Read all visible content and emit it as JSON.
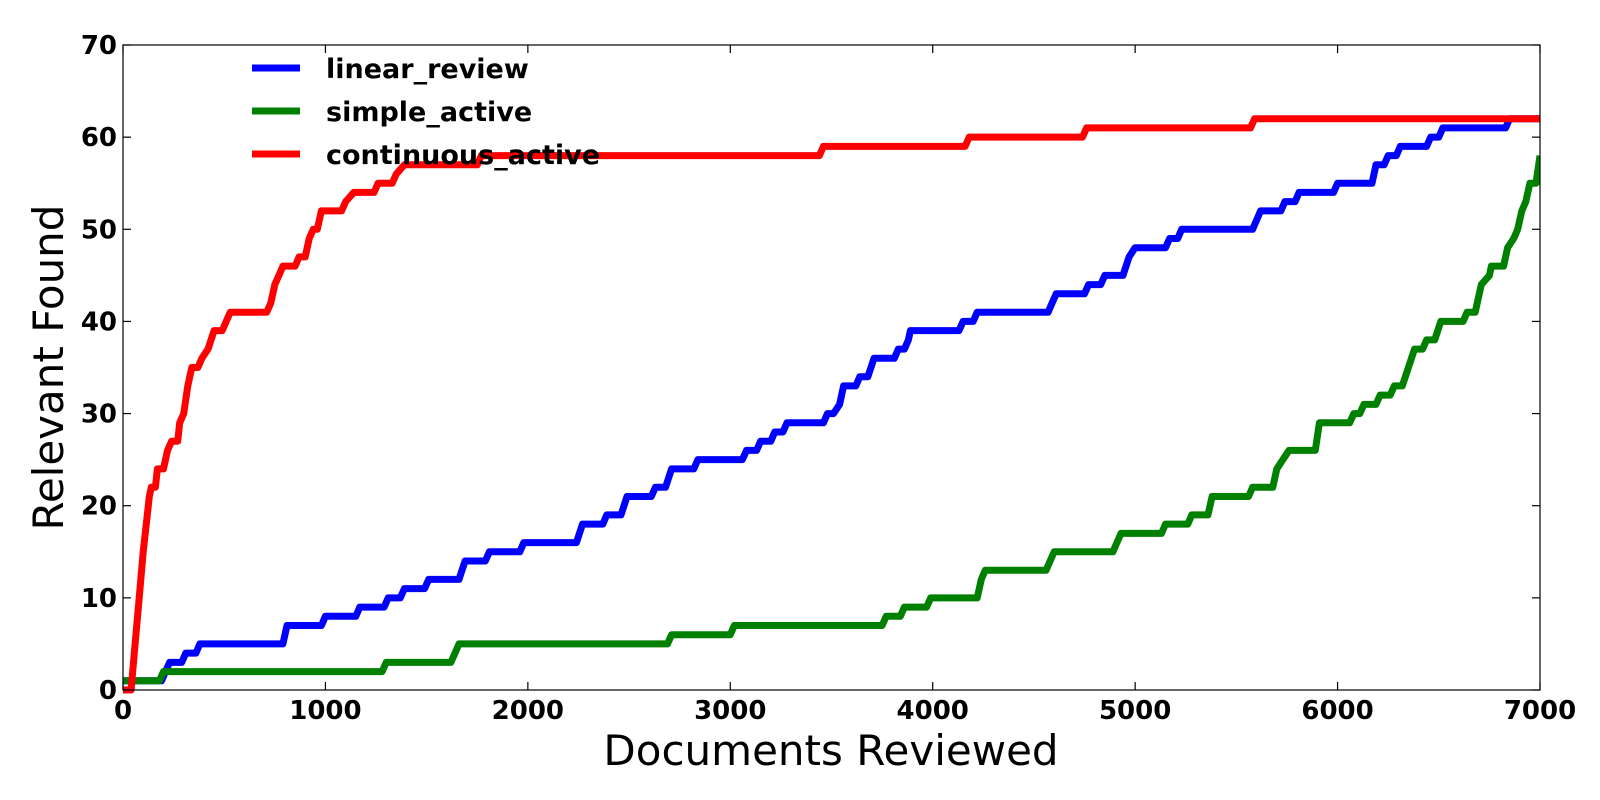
{
  "chart_data": {
    "type": "line",
    "xlabel": "Documents Reviewed",
    "ylabel": "Relevant Found",
    "xlim": [
      0,
      7000
    ],
    "ylim": [
      0,
      70
    ],
    "x_ticks": [
      0,
      1000,
      2000,
      3000,
      4000,
      5000,
      6000,
      7000
    ],
    "y_ticks": [
      0,
      10,
      20,
      30,
      40,
      50,
      60,
      70
    ],
    "grid": false,
    "legend_position": "top-left",
    "series": [
      {
        "name": "linear_review",
        "color": "#0000ff",
        "points": [
          [
            0,
            1
          ],
          [
            190,
            1
          ],
          [
            210,
            2
          ],
          [
            230,
            3
          ],
          [
            290,
            3
          ],
          [
            310,
            4
          ],
          [
            360,
            4
          ],
          [
            380,
            5
          ],
          [
            790,
            5
          ],
          [
            810,
            7
          ],
          [
            980,
            7
          ],
          [
            1000,
            8
          ],
          [
            1150,
            8
          ],
          [
            1170,
            9
          ],
          [
            1290,
            9
          ],
          [
            1310,
            10
          ],
          [
            1370,
            10
          ],
          [
            1390,
            11
          ],
          [
            1490,
            11
          ],
          [
            1510,
            12
          ],
          [
            1660,
            12
          ],
          [
            1690,
            14
          ],
          [
            1790,
            14
          ],
          [
            1810,
            15
          ],
          [
            1960,
            15
          ],
          [
            1980,
            16
          ],
          [
            2240,
            16
          ],
          [
            2270,
            18
          ],
          [
            2370,
            18
          ],
          [
            2390,
            19
          ],
          [
            2460,
            19
          ],
          [
            2490,
            21
          ],
          [
            2610,
            21
          ],
          [
            2630,
            22
          ],
          [
            2680,
            22
          ],
          [
            2710,
            24
          ],
          [
            2820,
            24
          ],
          [
            2840,
            25
          ],
          [
            3060,
            25
          ],
          [
            3080,
            26
          ],
          [
            3130,
            26
          ],
          [
            3150,
            27
          ],
          [
            3200,
            27
          ],
          [
            3220,
            28
          ],
          [
            3260,
            28
          ],
          [
            3280,
            29
          ],
          [
            3460,
            29
          ],
          [
            3480,
            30
          ],
          [
            3510,
            30
          ],
          [
            3540,
            31
          ],
          [
            3560,
            33
          ],
          [
            3620,
            33
          ],
          [
            3640,
            34
          ],
          [
            3680,
            34
          ],
          [
            3710,
            36
          ],
          [
            3810,
            36
          ],
          [
            3830,
            37
          ],
          [
            3860,
            37
          ],
          [
            3880,
            38
          ],
          [
            3890,
            39
          ],
          [
            4130,
            39
          ],
          [
            4150,
            40
          ],
          [
            4200,
            40
          ],
          [
            4220,
            41
          ],
          [
            4570,
            41
          ],
          [
            4590,
            42
          ],
          [
            4610,
            43
          ],
          [
            4750,
            43
          ],
          [
            4770,
            44
          ],
          [
            4830,
            44
          ],
          [
            4850,
            45
          ],
          [
            4940,
            45
          ],
          [
            4970,
            47
          ],
          [
            5000,
            48
          ],
          [
            5150,
            48
          ],
          [
            5170,
            49
          ],
          [
            5210,
            49
          ],
          [
            5230,
            50
          ],
          [
            5580,
            50
          ],
          [
            5600,
            51
          ],
          [
            5620,
            52
          ],
          [
            5720,
            52
          ],
          [
            5740,
            53
          ],
          [
            5790,
            53
          ],
          [
            5810,
            54
          ],
          [
            5980,
            54
          ],
          [
            6000,
            55
          ],
          [
            6170,
            55
          ],
          [
            6190,
            57
          ],
          [
            6230,
            57
          ],
          [
            6250,
            58
          ],
          [
            6290,
            58
          ],
          [
            6310,
            59
          ],
          [
            6440,
            59
          ],
          [
            6460,
            60
          ],
          [
            6500,
            60
          ],
          [
            6520,
            61
          ],
          [
            6830,
            61
          ],
          [
            6850,
            62
          ],
          [
            7000,
            62
          ]
        ]
      },
      {
        "name": "simple_active",
        "color": "#008000",
        "points": [
          [
            0,
            1
          ],
          [
            180,
            1
          ],
          [
            200,
            2
          ],
          [
            1280,
            2
          ],
          [
            1300,
            3
          ],
          [
            1620,
            3
          ],
          [
            1640,
            4
          ],
          [
            1660,
            5
          ],
          [
            2690,
            5
          ],
          [
            2710,
            6
          ],
          [
            3000,
            6
          ],
          [
            3020,
            7
          ],
          [
            3750,
            7
          ],
          [
            3770,
            8
          ],
          [
            3840,
            8
          ],
          [
            3860,
            9
          ],
          [
            3970,
            9
          ],
          [
            3990,
            10
          ],
          [
            4220,
            10
          ],
          [
            4240,
            12
          ],
          [
            4260,
            13
          ],
          [
            4560,
            13
          ],
          [
            4580,
            14
          ],
          [
            4600,
            15
          ],
          [
            4890,
            15
          ],
          [
            4910,
            16
          ],
          [
            4930,
            17
          ],
          [
            5130,
            17
          ],
          [
            5150,
            18
          ],
          [
            5260,
            18
          ],
          [
            5280,
            19
          ],
          [
            5360,
            19
          ],
          [
            5380,
            21
          ],
          [
            5560,
            21
          ],
          [
            5580,
            22
          ],
          [
            5680,
            22
          ],
          [
            5700,
            24
          ],
          [
            5730,
            25
          ],
          [
            5760,
            26
          ],
          [
            5890,
            26
          ],
          [
            5910,
            29
          ],
          [
            6060,
            29
          ],
          [
            6080,
            30
          ],
          [
            6110,
            30
          ],
          [
            6130,
            31
          ],
          [
            6190,
            31
          ],
          [
            6210,
            32
          ],
          [
            6260,
            32
          ],
          [
            6280,
            33
          ],
          [
            6320,
            33
          ],
          [
            6350,
            35
          ],
          [
            6380,
            37
          ],
          [
            6420,
            37
          ],
          [
            6440,
            38
          ],
          [
            6480,
            38
          ],
          [
            6510,
            40
          ],
          [
            6620,
            40
          ],
          [
            6640,
            41
          ],
          [
            6680,
            41
          ],
          [
            6710,
            44
          ],
          [
            6750,
            45
          ],
          [
            6760,
            46
          ],
          [
            6820,
            46
          ],
          [
            6840,
            48
          ],
          [
            6870,
            49
          ],
          [
            6890,
            50
          ],
          [
            6910,
            52
          ],
          [
            6930,
            53
          ],
          [
            6950,
            55
          ],
          [
            6980,
            55
          ],
          [
            7000,
            58
          ]
        ]
      },
      {
        "name": "continuous_active",
        "color": "#ff0000",
        "points": [
          [
            0,
            0
          ],
          [
            40,
            0
          ],
          [
            60,
            5
          ],
          [
            80,
            10
          ],
          [
            100,
            15
          ],
          [
            120,
            19
          ],
          [
            130,
            21
          ],
          [
            140,
            22
          ],
          [
            160,
            22
          ],
          [
            170,
            24
          ],
          [
            200,
            24
          ],
          [
            220,
            26
          ],
          [
            240,
            27
          ],
          [
            270,
            27
          ],
          [
            280,
            29
          ],
          [
            300,
            30
          ],
          [
            320,
            33
          ],
          [
            340,
            35
          ],
          [
            370,
            35
          ],
          [
            390,
            36
          ],
          [
            420,
            37
          ],
          [
            450,
            39
          ],
          [
            490,
            39
          ],
          [
            510,
            40
          ],
          [
            530,
            41
          ],
          [
            710,
            41
          ],
          [
            730,
            42
          ],
          [
            750,
            44
          ],
          [
            770,
            45
          ],
          [
            790,
            46
          ],
          [
            850,
            46
          ],
          [
            870,
            47
          ],
          [
            900,
            47
          ],
          [
            920,
            49
          ],
          [
            940,
            50
          ],
          [
            960,
            50
          ],
          [
            980,
            52
          ],
          [
            1080,
            52
          ],
          [
            1100,
            53
          ],
          [
            1140,
            54
          ],
          [
            1240,
            54
          ],
          [
            1260,
            55
          ],
          [
            1330,
            55
          ],
          [
            1350,
            56
          ],
          [
            1390,
            57
          ],
          [
            1750,
            57
          ],
          [
            1770,
            58
          ],
          [
            3440,
            58
          ],
          [
            3460,
            59
          ],
          [
            4160,
            59
          ],
          [
            4180,
            60
          ],
          [
            4740,
            60
          ],
          [
            4760,
            61
          ],
          [
            5570,
            61
          ],
          [
            5590,
            62
          ],
          [
            7000,
            62
          ]
        ]
      }
    ]
  }
}
